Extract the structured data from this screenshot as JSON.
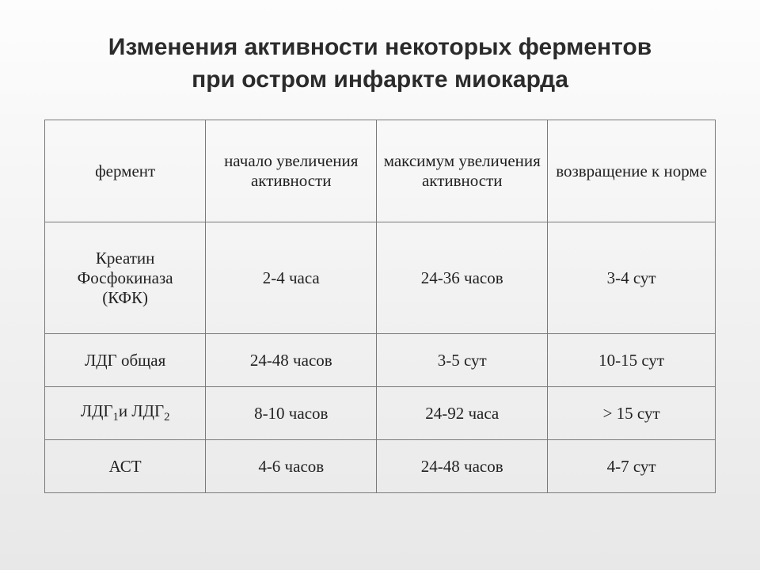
{
  "title_line1": "Изменения активности некоторых ферментов",
  "title_line2": "при остром инфаркте миокарда",
  "table": {
    "columns": [
      "фермент",
      "начало увеличения активности",
      "максимум увеличения активности",
      "возвращение к норме"
    ],
    "rows": [
      {
        "enzyme_html": "Креатин<br>Фосфокиназа<br>(КФК)",
        "onset": "2-4 часа",
        "peak": "24-36 часов",
        "normalize": "3-4 сут",
        "tall": true
      },
      {
        "enzyme_html": "ЛДГ общая",
        "onset": "24-48 часов",
        "peak": "3-5 сут",
        "normalize": "10-15 сут",
        "tall": false
      },
      {
        "enzyme_html": "ЛДГ<sub>1</sub>и ЛДГ<sub>2</sub>",
        "onset": "8-10 часов",
        "peak": "24-92 часа",
        "normalize": "> 15 сут",
        "tall": false
      },
      {
        "enzyme_html": "АСТ",
        "onset": "4-6 часов",
        "peak": "24-48 часов",
        "normalize": "4-7 сут",
        "tall": false
      }
    ],
    "border_color": "#7a7a7a",
    "header_fontsize": 21,
    "cell_fontsize": 21,
    "font_family": "Times New Roman"
  },
  "title_fontsize": 30,
  "title_color": "#2b2b2b",
  "background_gradient": [
    "#fdfdfd",
    "#e8e8e8"
  ]
}
